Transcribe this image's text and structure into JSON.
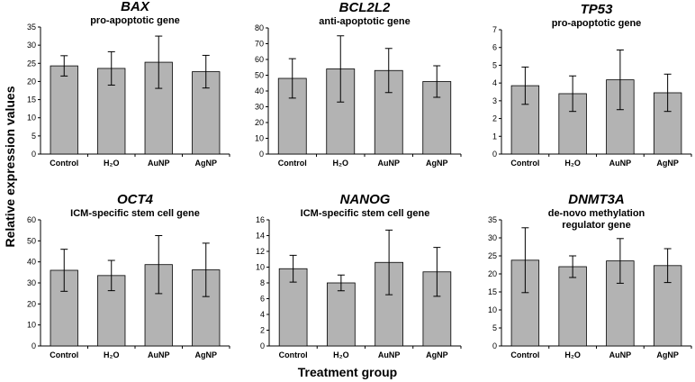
{
  "figure": {
    "ylabel": "Relative expression values",
    "xlabel": "Treatment group"
  },
  "chart_data": [
    {
      "type": "bar",
      "title": "BAX",
      "subtitle": [
        "pro-apoptotic gene"
      ],
      "categories": [
        "Control",
        "H₂O",
        "AuNP",
        "AgNP"
      ],
      "values": [
        24.3,
        23.6,
        25.3,
        22.7
      ],
      "errors": [
        2.8,
        4.6,
        7.2,
        4.5
      ],
      "ylim": [
        0,
        35
      ],
      "yticks": [
        0,
        5,
        10,
        15,
        20,
        25,
        30,
        35
      ],
      "bar_color": "#b3b3b3"
    },
    {
      "type": "bar",
      "title": "BCL2L2",
      "subtitle": [
        "anti-apoptotic gene"
      ],
      "categories": [
        "Control",
        "H₂O",
        "AuNP",
        "AgNP"
      ],
      "values": [
        48,
        54,
        53,
        46
      ],
      "errors": [
        12.5,
        21,
        14,
        10
      ],
      "ylim": [
        0,
        80
      ],
      "yticks": [
        0,
        10,
        20,
        30,
        40,
        50,
        60,
        70,
        80
      ],
      "bar_color": "#b3b3b3"
    },
    {
      "type": "bar",
      "title": "TP53",
      "subtitle": [
        "pro-apoptotic gene"
      ],
      "categories": [
        "Control",
        "H₂O",
        "AuNP",
        "AgNP"
      ],
      "values": [
        3.85,
        3.4,
        4.18,
        3.45
      ],
      "errors": [
        1.05,
        1.0,
        1.68,
        1.05
      ],
      "ylim": [
        0,
        7
      ],
      "yticks": [
        0,
        1,
        2,
        3,
        4,
        5,
        6,
        7
      ],
      "bar_color": "#b3b3b3"
    },
    {
      "type": "bar",
      "title": "OCT4",
      "subtitle": [
        "ICM-specific stem cell gene"
      ],
      "categories": [
        "Control",
        "H₂O",
        "AuNP",
        "AgNP"
      ],
      "values": [
        36,
        33.5,
        38.7,
        36.2
      ],
      "errors": [
        10,
        7.2,
        13.8,
        12.7
      ],
      "ylim": [
        0,
        60
      ],
      "yticks": [
        0,
        10,
        20,
        30,
        40,
        50,
        60
      ],
      "bar_color": "#b3b3b3"
    },
    {
      "type": "bar",
      "title": "NANOG",
      "subtitle": [
        "ICM-specific stem cell gene"
      ],
      "categories": [
        "Control",
        "H₂O",
        "AuNP",
        "AgNP"
      ],
      "values": [
        9.8,
        8.0,
        10.6,
        9.4
      ],
      "errors": [
        1.7,
        1.0,
        4.1,
        3.1
      ],
      "ylim": [
        0,
        16
      ],
      "yticks": [
        0,
        2,
        4,
        6,
        8,
        10,
        12,
        14,
        16
      ],
      "bar_color": "#b3b3b3"
    },
    {
      "type": "bar",
      "title": "DNMT3A",
      "subtitle": [
        "de-novo methylation",
        "regulator gene"
      ],
      "categories": [
        "Control",
        "H₂O",
        "AuNP",
        "AgNP"
      ],
      "values": [
        23.8,
        22.0,
        23.6,
        22.3
      ],
      "errors": [
        9.0,
        3.0,
        6.2,
        4.7
      ],
      "ylim": [
        0,
        35
      ],
      "yticks": [
        0,
        5,
        10,
        15,
        20,
        25,
        30,
        35
      ],
      "bar_color": "#b3b3b3"
    }
  ]
}
